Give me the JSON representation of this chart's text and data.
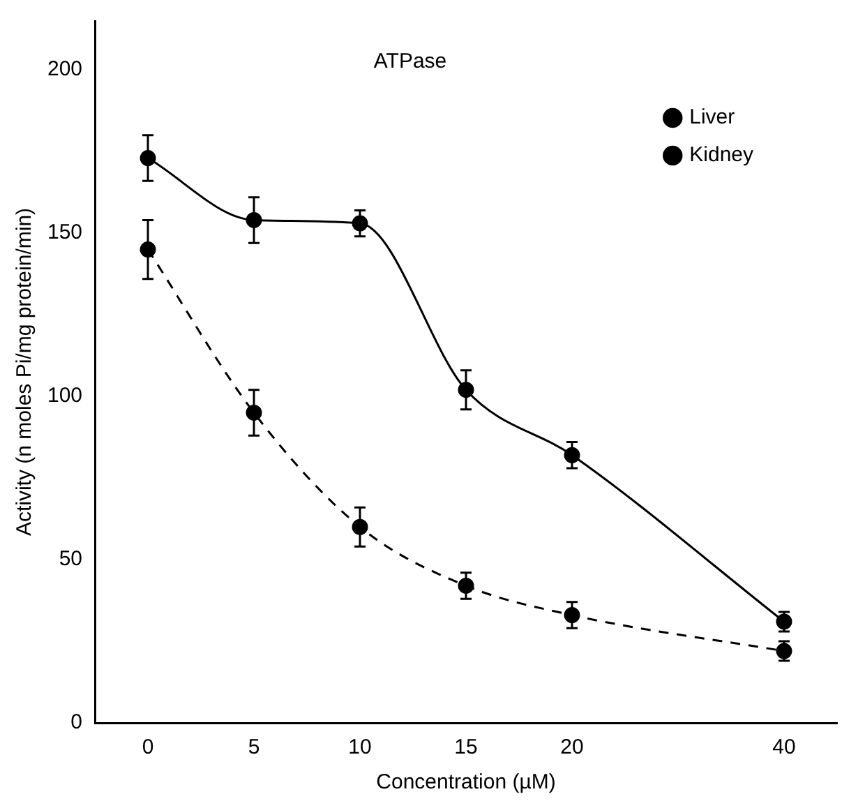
{
  "chart_data": {
    "type": "line",
    "title": "ATPase",
    "xlabel": "Concentration (µM)",
    "ylabel": "Activity (n moles Pi/mg protein/min)",
    "categories": [
      "0",
      "5",
      "10",
      "15",
      "20",
      null,
      "40"
    ],
    "series": [
      {
        "name": "Liver",
        "color": "#000000",
        "line_style": "solid",
        "values": [
          173,
          154,
          153,
          102,
          82,
          null,
          31
        ],
        "errors": [
          7,
          7,
          4,
          6,
          4,
          null,
          3
        ]
      },
      {
        "name": "Kidney",
        "color": "#000000",
        "line_style": "dashed",
        "values": [
          145,
          95,
          60,
          42,
          33,
          null,
          22
        ],
        "errors": [
          9,
          7,
          6,
          4,
          4,
          null,
          3
        ]
      }
    ],
    "ylim": [
      0,
      215
    ],
    "yticks": [
      0,
      50,
      100,
      150,
      200
    ],
    "grid": false,
    "legend": "top right",
    "marker": "circle"
  }
}
